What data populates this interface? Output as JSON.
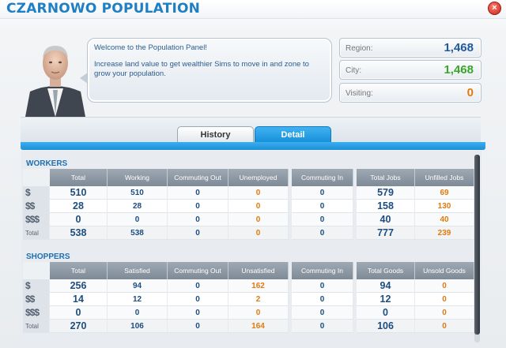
{
  "window": {
    "title": "CZARNOWO POPULATION",
    "close_glyph": "×"
  },
  "advisor": {
    "welcome": "Welcome to the Population Panel!",
    "message": "Increase land value to get wealthier Sims to move in and zone to grow your population."
  },
  "stats": {
    "region": {
      "label": "Region:",
      "value": "1,468",
      "color": "#1e5a9c"
    },
    "city": {
      "label": "City:",
      "value": "1,468",
      "color": "#3aa52a"
    },
    "visiting": {
      "label": "Visiting:",
      "value": "0",
      "color": "#e07a10"
    }
  },
  "tabs": [
    {
      "label": "History",
      "active": false
    },
    {
      "label": "Detail",
      "active": true
    }
  ],
  "workers": {
    "title": "WORKERS",
    "headers": [
      "Total",
      "Working",
      "Commuting Out",
      "Unemployed",
      "Commuting In",
      "Total Jobs",
      "Unfilled Jobs"
    ],
    "rows": [
      {
        "label": "$",
        "icon": "low-wealth-icon",
        "values": [
          "510",
          "510",
          "0",
          "0",
          "0",
          "579",
          "69"
        ]
      },
      {
        "label": "$$",
        "icon": "medium-wealth-icon",
        "values": [
          "28",
          "28",
          "0",
          "0",
          "0",
          "158",
          "130"
        ]
      },
      {
        "label": "$$$",
        "icon": "high-wealth-icon",
        "values": [
          "0",
          "0",
          "0",
          "0",
          "0",
          "40",
          "40"
        ]
      },
      {
        "label": "Total",
        "icon": "",
        "values": [
          "538",
          "538",
          "0",
          "0",
          "0",
          "777",
          "239"
        ]
      }
    ]
  },
  "shoppers": {
    "title": "SHOPPERS",
    "headers": [
      "Total",
      "Satisfied",
      "Commuting Out",
      "Unsatisfied",
      "Commuting In",
      "Total Goods",
      "Unsold Goods"
    ],
    "rows": [
      {
        "label": "$",
        "icon": "low-wealth-icon",
        "values": [
          "256",
          "94",
          "0",
          "162",
          "0",
          "94",
          "0"
        ]
      },
      {
        "label": "$$",
        "icon": "medium-wealth-icon",
        "values": [
          "14",
          "12",
          "0",
          "2",
          "0",
          "12",
          "0"
        ]
      },
      {
        "label": "$$$",
        "icon": "high-wealth-icon",
        "values": [
          "0",
          "0",
          "0",
          "0",
          "0",
          "0",
          "0"
        ]
      },
      {
        "label": "Total",
        "icon": "",
        "values": [
          "270",
          "106",
          "0",
          "164",
          "0",
          "106",
          "0"
        ]
      }
    ]
  }
}
